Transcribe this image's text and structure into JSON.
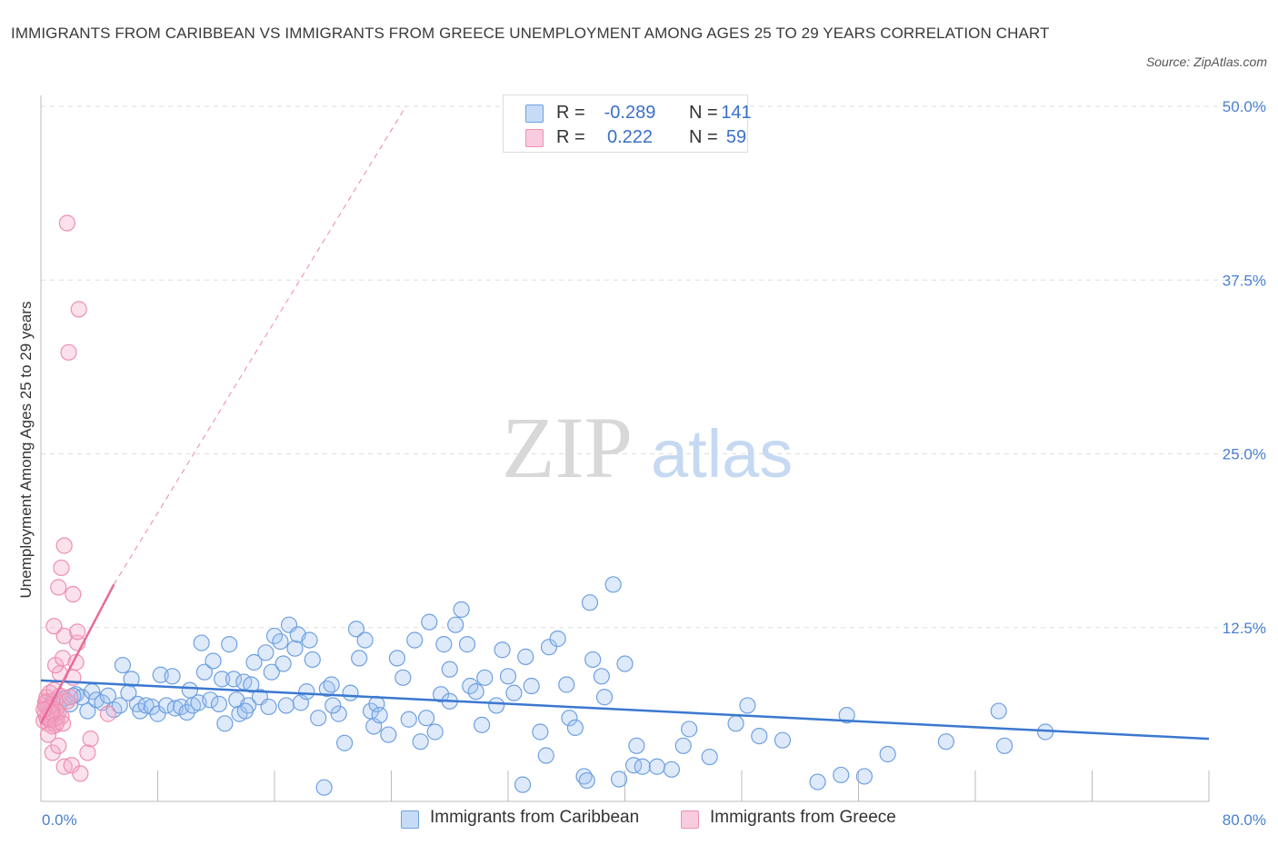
{
  "title": "IMMIGRANTS FROM CARIBBEAN VS IMMIGRANTS FROM GREECE UNEMPLOYMENT AMONG AGES 25 TO 29 YEARS CORRELATION CHART",
  "source": "Source: ZipAtlas.com",
  "watermark": {
    "zip": "ZIP",
    "atlas": "atlas"
  },
  "legend": {
    "r_label": "R =",
    "n_label": "N =",
    "rows": [
      {
        "r": "-0.289",
        "n": "141"
      },
      {
        "r": "0.222",
        "n": "59"
      }
    ]
  },
  "colors": {
    "caribbean_fill": "rgba(160,196,240,0.35)",
    "caribbean_stroke": "#6fa0e0",
    "caribbean_line": "#3a78d0",
    "greece_fill": "rgba(244,170,200,0.35)",
    "greece_stroke": "#ee8fb0",
    "greece_line": "#e86a98",
    "grid": "#dddddd",
    "tick_text": "#4a7fd0"
  },
  "chart_data": {
    "type": "scatter",
    "title": "IMMIGRANTS FROM CARIBBEAN VS IMMIGRANTS FROM GREECE UNEMPLOYMENT AMONG AGES 25 TO 29 YEARS CORRELATION CHART",
    "xlabel": "",
    "ylabel": "Unemployment Among Ages 25 to 29 years",
    "xlim": [
      0,
      80
    ],
    "ylim": [
      0,
      50
    ],
    "x_tick_labels": {
      "min": "0.0%",
      "max": "80.0%"
    },
    "y_ticks": [
      {
        "value": 12.5,
        "label": "12.5%"
      },
      {
        "value": 25.0,
        "label": "25.0%"
      },
      {
        "value": 37.5,
        "label": "37.5%"
      },
      {
        "value": 50.0,
        "label": "50.0%"
      }
    ],
    "series": [
      {
        "name": "Immigrants from Caribbean",
        "r": -0.289,
        "n": 141,
        "trend": {
          "x0": 0,
          "y0": 8.7,
          "x1": 80,
          "y1": 4.5
        },
        "points": [
          [
            0.8,
            7.2
          ],
          [
            1.2,
            6.8
          ],
          [
            1.6,
            7.4
          ],
          [
            2.0,
            7.0
          ],
          [
            2.4,
            7.7
          ],
          [
            2.8,
            7.5
          ],
          [
            3.2,
            6.5
          ],
          [
            3.5,
            7.9
          ],
          [
            3.8,
            7.3
          ],
          [
            4.2,
            7.1
          ],
          [
            4.6,
            7.6
          ],
          [
            5.0,
            6.6
          ],
          [
            5.4,
            6.9
          ],
          [
            5.6,
            9.8
          ],
          [
            6.2,
            8.8
          ],
          [
            6.6,
            7.0
          ],
          [
            6.8,
            6.5
          ],
          [
            7.2,
            6.9
          ],
          [
            7.6,
            6.8
          ],
          [
            8.0,
            6.3
          ],
          [
            8.2,
            9.1
          ],
          [
            8.6,
            6.9
          ],
          [
            9.0,
            9.0
          ],
          [
            9.2,
            6.7
          ],
          [
            9.6,
            6.8
          ],
          [
            10.0,
            6.4
          ],
          [
            10.2,
            8.0
          ],
          [
            10.4,
            6.9
          ],
          [
            10.8,
            7.1
          ],
          [
            11.0,
            11.4
          ],
          [
            11.2,
            9.3
          ],
          [
            11.6,
            7.3
          ],
          [
            11.8,
            10.1
          ],
          [
            12.2,
            7.0
          ],
          [
            12.4,
            8.8
          ],
          [
            12.6,
            5.6
          ],
          [
            12.9,
            11.3
          ],
          [
            13.2,
            8.8
          ],
          [
            13.4,
            7.3
          ],
          [
            13.6,
            6.3
          ],
          [
            13.9,
            8.6
          ],
          [
            14.2,
            6.9
          ],
          [
            14.4,
            8.4
          ],
          [
            14.6,
            10.0
          ],
          [
            15.0,
            7.5
          ],
          [
            15.4,
            10.7
          ],
          [
            15.6,
            6.8
          ],
          [
            15.8,
            9.3
          ],
          [
            16.0,
            11.9
          ],
          [
            16.4,
            11.5
          ],
          [
            16.6,
            9.9
          ],
          [
            16.8,
            6.9
          ],
          [
            17.0,
            12.7
          ],
          [
            17.4,
            11.0
          ],
          [
            17.6,
            12.0
          ],
          [
            17.8,
            7.1
          ],
          [
            18.2,
            7.9
          ],
          [
            18.4,
            11.6
          ],
          [
            18.6,
            10.2
          ],
          [
            19.0,
            6.0
          ],
          [
            19.4,
            1.0
          ],
          [
            19.6,
            8.1
          ],
          [
            19.9,
            8.4
          ],
          [
            20.4,
            6.3
          ],
          [
            20.8,
            4.2
          ],
          [
            21.2,
            7.8
          ],
          [
            21.6,
            12.4
          ],
          [
            21.8,
            10.3
          ],
          [
            22.2,
            11.6
          ],
          [
            22.6,
            6.5
          ],
          [
            22.8,
            5.4
          ],
          [
            23.0,
            7.0
          ],
          [
            23.2,
            6.2
          ],
          [
            23.8,
            4.8
          ],
          [
            24.4,
            10.3
          ],
          [
            24.8,
            8.9
          ],
          [
            25.2,
            5.9
          ],
          [
            25.6,
            11.6
          ],
          [
            26.0,
            4.3
          ],
          [
            26.4,
            6.0
          ],
          [
            26.6,
            12.9
          ],
          [
            27.0,
            5.0
          ],
          [
            27.4,
            7.7
          ],
          [
            27.6,
            11.3
          ],
          [
            28.0,
            7.2
          ],
          [
            28.4,
            12.7
          ],
          [
            28.8,
            13.8
          ],
          [
            29.2,
            11.3
          ],
          [
            29.4,
            8.3
          ],
          [
            29.8,
            7.9
          ],
          [
            30.2,
            5.5
          ],
          [
            30.4,
            8.9
          ],
          [
            31.2,
            6.9
          ],
          [
            31.6,
            10.9
          ],
          [
            32.0,
            9.0
          ],
          [
            32.4,
            7.8
          ],
          [
            33.0,
            1.2
          ],
          [
            33.2,
            10.4
          ],
          [
            33.6,
            8.3
          ],
          [
            34.2,
            5.0
          ],
          [
            34.6,
            3.3
          ],
          [
            34.8,
            11.1
          ],
          [
            35.4,
            11.7
          ],
          [
            36.0,
            8.4
          ],
          [
            36.2,
            6.0
          ],
          [
            36.6,
            5.3
          ],
          [
            37.2,
            1.8
          ],
          [
            37.4,
            1.5
          ],
          [
            37.6,
            14.3
          ],
          [
            37.8,
            10.2
          ],
          [
            38.4,
            9.0
          ],
          [
            38.6,
            7.5
          ],
          [
            39.2,
            15.6
          ],
          [
            39.6,
            1.6
          ],
          [
            40.0,
            9.9
          ],
          [
            40.6,
            2.6
          ],
          [
            40.8,
            4.0
          ],
          [
            41.2,
            2.5
          ],
          [
            42.2,
            2.5
          ],
          [
            43.2,
            2.3
          ],
          [
            44.0,
            4.0
          ],
          [
            45.8,
            3.2
          ],
          [
            47.6,
            5.6
          ],
          [
            48.4,
            6.9
          ],
          [
            49.2,
            4.7
          ],
          [
            50.8,
            4.4
          ],
          [
            53.2,
            1.4
          ],
          [
            54.8,
            1.9
          ],
          [
            55.2,
            6.2
          ],
          [
            56.4,
            1.8
          ],
          [
            58.0,
            3.4
          ],
          [
            62.0,
            4.3
          ],
          [
            65.6,
            6.5
          ],
          [
            66.0,
            4.0
          ],
          [
            68.8,
            5.0
          ],
          [
            2.2,
            7.6
          ],
          [
            6.0,
            7.8
          ],
          [
            14.0,
            6.5
          ],
          [
            20.0,
            6.9
          ],
          [
            28.0,
            9.5
          ],
          [
            44.4,
            5.2
          ]
        ]
      },
      {
        "name": "Immigrants from Greece",
        "r": 0.222,
        "n": 59,
        "trend": {
          "x0": 0,
          "y0": 5.6,
          "x1": 5.0,
          "y1": 15.6,
          "extended": {
            "x1": 25.0,
            "y1": 50.0
          }
        },
        "points": [
          [
            0.2,
            5.8
          ],
          [
            0.3,
            6.3
          ],
          [
            0.3,
            6.9
          ],
          [
            0.4,
            7.2
          ],
          [
            0.4,
            7.5
          ],
          [
            0.5,
            6.1
          ],
          [
            0.5,
            5.6
          ],
          [
            0.6,
            6.5
          ],
          [
            0.6,
            7.8
          ],
          [
            0.7,
            6.0
          ],
          [
            0.7,
            6.8
          ],
          [
            0.8,
            5.4
          ],
          [
            0.8,
            7.0
          ],
          [
            0.9,
            6.2
          ],
          [
            0.9,
            5.9
          ],
          [
            1.0,
            6.6
          ],
          [
            1.0,
            7.3
          ],
          [
            1.1,
            5.7
          ],
          [
            1.1,
            6.0
          ],
          [
            1.2,
            6.4
          ],
          [
            0.3,
            7.1
          ],
          [
            0.5,
            6.7
          ],
          [
            0.6,
            5.9
          ],
          [
            0.8,
            6.3
          ],
          [
            1.3,
            7.6
          ],
          [
            1.4,
            6.1
          ],
          [
            0.4,
            6.0
          ],
          [
            0.7,
            6.4
          ],
          [
            0.2,
            6.6
          ],
          [
            1.0,
            5.5
          ],
          [
            0.5,
            4.8
          ],
          [
            0.8,
            3.5
          ],
          [
            1.2,
            4.0
          ],
          [
            1.5,
            5.6
          ],
          [
            1.8,
            7.2
          ],
          [
            2.0,
            7.5
          ],
          [
            2.2,
            8.9
          ],
          [
            0.9,
            8.0
          ],
          [
            1.3,
            9.2
          ],
          [
            1.0,
            9.8
          ],
          [
            1.5,
            10.3
          ],
          [
            2.4,
            10.0
          ],
          [
            2.5,
            11.4
          ],
          [
            1.6,
            11.9
          ],
          [
            0.9,
            12.6
          ],
          [
            2.5,
            12.2
          ],
          [
            1.2,
            15.4
          ],
          [
            2.2,
            14.9
          ],
          [
            1.4,
            16.8
          ],
          [
            1.6,
            18.4
          ],
          [
            1.9,
            32.3
          ],
          [
            2.6,
            35.4
          ],
          [
            1.8,
            41.6
          ],
          [
            1.6,
            2.5
          ],
          [
            2.1,
            2.6
          ],
          [
            2.7,
            2.0
          ],
          [
            3.2,
            3.5
          ],
          [
            3.4,
            4.5
          ],
          [
            4.6,
            6.3
          ]
        ]
      }
    ]
  },
  "bottom_legend": [
    {
      "label": "Immigrants from Caribbean"
    },
    {
      "label": "Immigrants from Greece"
    }
  ]
}
